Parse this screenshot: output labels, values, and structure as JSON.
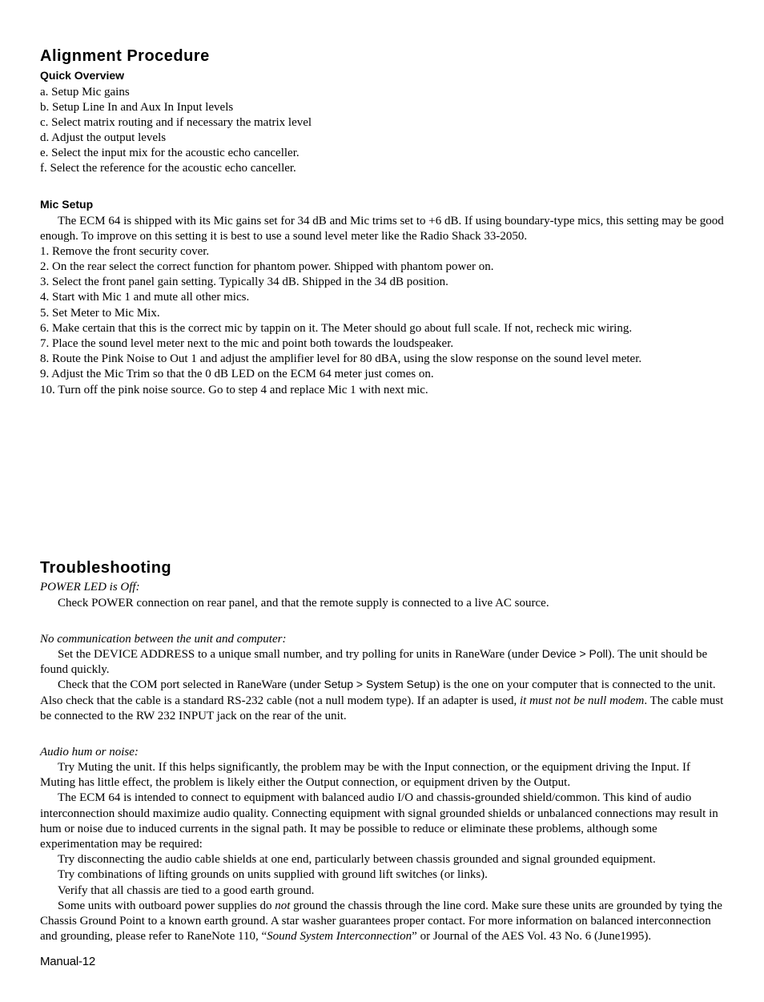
{
  "alignment": {
    "title": "Alignment Procedure",
    "quick": {
      "heading": "Quick Overview",
      "items": [
        "a. Setup Mic gains",
        "b. Setup Line In and Aux In Input levels",
        "c. Select matrix routing and if necessary the matrix level",
        "d. Adjust the output levels",
        "e. Select the input mix for the acoustic echo canceller.",
        "f. Select the reference for the acoustic echo canceller."
      ]
    },
    "mic": {
      "heading": "Mic Setup",
      "intro": "The ECM 64 is shipped with its Mic gains set for 34 dB and Mic trims set to +6 dB. If using boundary-type mics, this setting may be good enough. To improve on this setting it is best to use a sound level meter like the Radio Shack 33-2050.",
      "steps": [
        "1. Remove the front security cover.",
        "2. On the rear select the correct function for phantom power. Shipped with phantom power on.",
        "3. Select the front panel gain setting. Typically 34 dB. Shipped in the 34 dB position.",
        "4. Start with Mic 1 and mute all other mics.",
        "5. Set Meter to Mic Mix.",
        "6. Make certain that this is the correct mic by tappin on it. The Meter should go about full scale. If not, recheck mic wiring.",
        "7. Place the sound level meter next to the mic and point both towards the loudspeaker.",
        "8. Route the Pink Noise to Out 1 and adjust the amplifier level for 80 dBA, using the slow response on the sound level meter.",
        "9. Adjust the Mic Trim so that the 0 dB LED on the ECM 64 meter just comes on.",
        "10. Turn off the pink noise source. Go to step 4 and replace Mic 1 with next mic."
      ]
    }
  },
  "trouble": {
    "title": "Troubleshooting",
    "power": {
      "heading": "POWER LED is Off:",
      "body": "Check POWER connection on rear panel, and that the remote supply is connected to a live AC source."
    },
    "nocomm": {
      "heading": "No communication between the unit and computer:",
      "p1a": "Set the DEVICE ADDRESS to a unique small number, and try polling for units in RaneWare (under ",
      "p1b": "Device > Poll",
      "p1c": "). The unit should be found quickly.",
      "p2a": "Check that the COM port selected in RaneWare (under ",
      "p2b": "Setup > System Setup",
      "p2c": ") is the one on your computer that is connected to the unit. Also check that the cable is a standard RS-232 cable (not a null modem type). If an adapter is used, ",
      "p2d": "it must not be null modem",
      "p2e": ". The cable must be connected to the RW 232 INPUT jack on the rear of the unit."
    },
    "audio": {
      "heading": "Audio hum or noise:",
      "p1": "Try Muting the unit. If this helps significantly, the problem may be with the Input connection, or the equipment driving the Input. If Muting has little effect, the problem is likely either the Output connection, or equipment driven by the Output.",
      "p2": "The ECM 64 is intended to connect to equipment with balanced audio I/O and chassis-grounded shield/common. This kind of audio interconnection should maximize audio quality. Connecting equipment with signal grounded shields or unbalanced connections may result in hum or noise due to induced currents in the signal path. It may be possible to reduce or eliminate these problems, although some experimentation may be required:",
      "b1": "Try disconnecting the audio cable shields at one end, particularly between chassis grounded and signal grounded equipment.",
      "b2": "Try combinations of lifting grounds on units supplied with ground lift switches (or links).",
      "b3": "Verify that all chassis are tied to a good earth ground.",
      "p3a": "Some units with outboard power supplies do ",
      "p3b": "not",
      "p3c": " ground the chassis through the line cord. Make sure these units are grounded by tying the Chassis Ground Point to a known earth ground. A star washer guarantees proper contact. For more information on balanced interconnection and grounding, please refer to RaneNote 110, “",
      "p3d": "Sound System Interconnection",
      "p3e": "” or Journal of the AES Vol. 43 No. 6 (June1995)."
    }
  },
  "footer": "Manual-12"
}
